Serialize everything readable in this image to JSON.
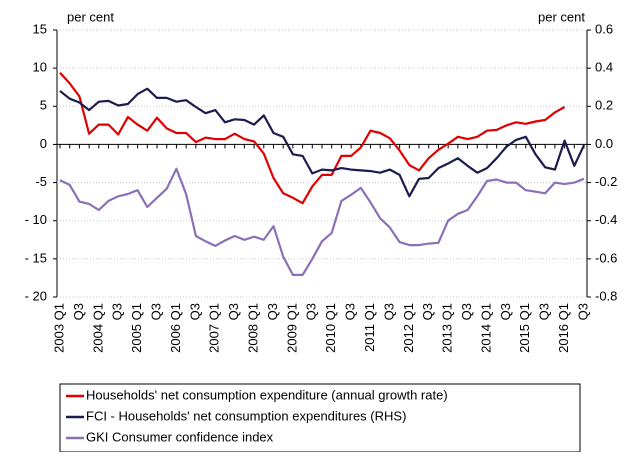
{
  "chart_data": {
    "type": "line",
    "y_label": "per cent",
    "y2_label": "per cent",
    "categories": [
      "2003 Q1",
      null,
      "Q3",
      null,
      "2004 Q1",
      null,
      "Q3",
      null,
      "2005 Q1",
      null,
      "Q3",
      null,
      "2006 Q1",
      null,
      "Q3",
      null,
      "2007 Q1",
      null,
      "Q3",
      null,
      "2008 Q1",
      null,
      "Q3",
      null,
      "2009 Q1",
      null,
      "Q3",
      null,
      "2010 Q1",
      null,
      "Q3",
      null,
      "2011 Q1",
      null,
      "Q3",
      null,
      "2012 Q1",
      null,
      "Q3",
      null,
      "2013 Q1",
      null,
      "Q3",
      null,
      "2014 Q1",
      null,
      "Q3",
      null,
      "2015 Q1",
      null,
      "Q3",
      null,
      "2016 Q1",
      null,
      "Q3"
    ],
    "series": [
      {
        "name": "Households' net consumption expenditure (annual growth rate)",
        "color": "#e00000",
        "values": [
          9.4,
          8,
          6.3,
          1.4,
          2.6,
          2.6,
          1.3,
          3.6,
          2.6,
          1.8,
          3.5,
          2.1,
          1.5,
          1.5,
          0.3,
          0.9,
          0.7,
          0.7,
          1.4,
          0.7,
          0.4,
          -1.2,
          -4.4,
          -6.4,
          -7.0,
          -7.7,
          -5.5,
          -4,
          -4,
          -1.5,
          -1.5,
          -0.4,
          1.8,
          1.5,
          0.8,
          -0.8,
          -2.7,
          -3.4,
          -1.8,
          -0.7,
          0.1,
          1.0,
          0.7,
          1.0,
          1.8,
          1.9,
          2.5,
          2.9,
          2.7,
          3.0,
          3.2,
          4.2,
          4.9,
          null,
          null
        ]
      },
      {
        "name": "FCI - Households' net consumption expenditures (RHS)",
        "color": "#1c1c4e",
        "axis": "y2",
        "values": [
          0.28,
          0.24,
          0.22,
          0.18,
          0.224,
          0.228,
          0.204,
          0.212,
          0.264,
          0.292,
          0.244,
          0.244,
          0.224,
          0.232,
          0.196,
          0.164,
          0.18,
          0.116,
          0.132,
          0.128,
          0.104,
          0.152,
          0.06,
          0.04,
          -0.052,
          -0.06,
          -0.152,
          -0.132,
          -0.136,
          -0.124,
          -0.132,
          -0.136,
          -0.14,
          -0.148,
          -0.132,
          -0.16,
          -0.272,
          -0.18,
          -0.176,
          -0.124,
          -0.1,
          -0.072,
          -0.112,
          -0.148,
          -0.124,
          -0.072,
          -0.012,
          0.024,
          0.04,
          -0.052,
          -0.12,
          -0.132,
          0.02,
          -0.112,
          -0.004
        ]
      },
      {
        "name": "GKI Consumer confidence index",
        "color": "#8b70b8",
        "values": [
          -4.7,
          -5.3,
          -7.5,
          -7.8,
          -8.6,
          -7.4,
          -6.8,
          -6.5,
          -6.0,
          -8.2,
          -7.0,
          -5.8,
          -3.2,
          -6.5,
          -12.0,
          -12.7,
          -13.3,
          -12.6,
          -12.0,
          -12.5,
          -12.1,
          -12.5,
          -10.7,
          -14.7,
          -17.1,
          -17.1,
          -15.0,
          -12.7,
          -11.6,
          -7.4,
          -6.6,
          -5.7,
          -7.6,
          -9.7,
          -10.9,
          -12.8,
          -13.2,
          -13.2,
          -13.0,
          -12.9,
          -10.0,
          -9.1,
          -8.6,
          -6.8,
          -4.8,
          -4.6,
          -5.0,
          -5.0,
          -6.0,
          -6.2,
          -6.4,
          -5.0,
          -5.2,
          -5.0,
          -4.5
        ]
      }
    ],
    "ylim": [
      -20,
      15
    ],
    "yticks": [
      15,
      10,
      5,
      0,
      -5,
      {
        "value": -10,
        "label": "- 10"
      },
      {
        "value": -15,
        "label": "- 15"
      },
      {
        "value": -20,
        "label": "- 20"
      }
    ],
    "y2lim": [
      -0.8,
      0.6
    ],
    "y2ticks": [
      0.6,
      0.4,
      0.2,
      {
        "value": 0,
        "label": "0.0"
      },
      -0.2,
      -0.4,
      -0.6,
      -0.8
    ],
    "grid": true
  }
}
